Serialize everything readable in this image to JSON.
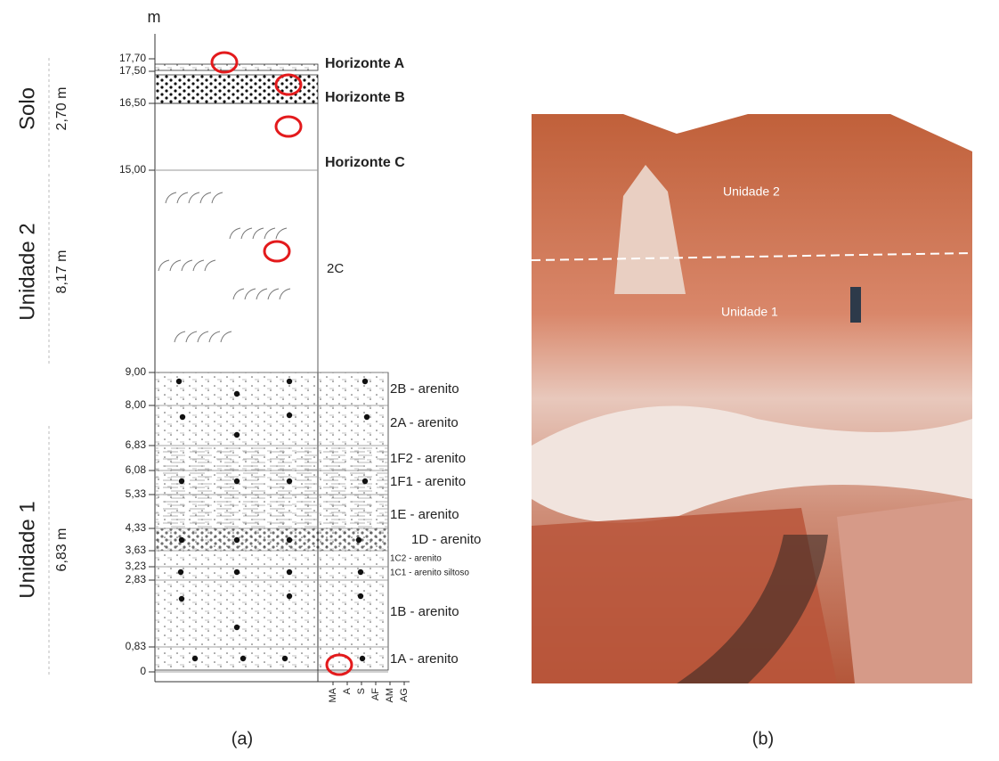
{
  "column": {
    "unit_label": "m",
    "depths": [
      "17,70",
      "17,50",
      "16,50",
      "15,00",
      "9,00",
      "8,00",
      "6,83",
      "6,08",
      "5,33",
      "4,33",
      "3,63",
      "3,23",
      "2,83",
      "0,83",
      "0"
    ],
    "units": [
      {
        "name": "Solo",
        "thickness": "2,70 m"
      },
      {
        "name": "Unidade 2",
        "thickness": "8,17 m"
      },
      {
        "name": "Unidade 1",
        "thickness": "6,83 m"
      }
    ],
    "horizons": [
      "Horizonte A",
      "Horizonte B",
      "Horizonte C"
    ],
    "layer_2c": "2C",
    "layers": [
      "2B - arenito",
      "2A - arenito",
      "1F2 - arenito",
      "1F1 - arenito",
      "1E - arenito",
      "1D - arenito",
      "1C2 - arenito",
      "1C1 - arenito siltoso",
      "1B - arenito",
      "1A - arenito"
    ],
    "grain_sizes": [
      "MA",
      "A",
      "S",
      "AF",
      "AM",
      "AG"
    ]
  },
  "photo": {
    "labels": [
      "Unidade 2",
      "Unidade 1"
    ]
  },
  "captions": [
    "(a)",
    "(b)"
  ]
}
